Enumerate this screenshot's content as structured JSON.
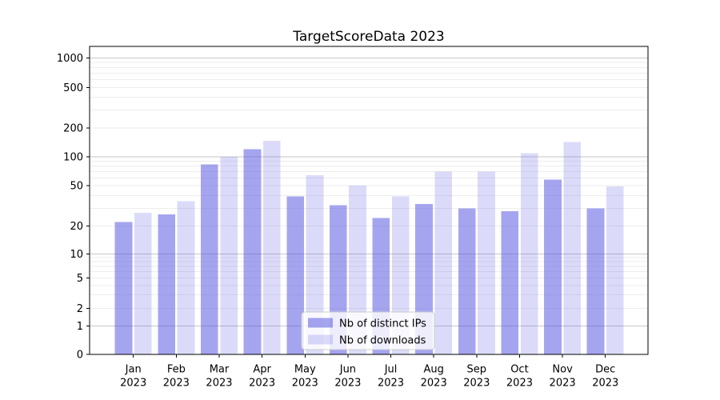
{
  "chart_data": {
    "type": "bar",
    "title": "TargetScoreData 2023",
    "categories": [
      "Jan",
      "Feb",
      "Mar",
      "Apr",
      "May",
      "Jun",
      "Jul",
      "Aug",
      "Sep",
      "Oct",
      "Nov",
      "Dec"
    ],
    "x_sublabel": "2023",
    "series": [
      {
        "name": "Nb of distinct IPs",
        "color": "#5a5ae2",
        "fill_opacity": 0.545,
        "apparent_color": "#a4a4f0",
        "values": [
          22,
          26,
          83,
          120,
          39,
          32,
          24,
          33,
          30,
          28,
          58,
          30
        ]
      },
      {
        "name": "Nb of downloads",
        "color": "#5a5ae2",
        "fill_opacity": 0.22,
        "apparent_color": "#d8d8f8",
        "values": [
          27,
          35,
          100,
          147,
          64,
          50,
          39,
          70,
          70,
          109,
          143,
          49
        ]
      }
    ],
    "yscale": "symlog-like",
    "ylim": [
      0,
      1284
    ],
    "yticks": [
      0,
      1,
      2,
      5,
      10,
      20,
      50,
      100,
      200,
      500,
      1000
    ],
    "grid": {
      "enabled": true,
      "major_color": "#c6c6c6",
      "minor_color": "#ededed",
      "major_values": [
        1,
        10,
        100,
        1000
      ]
    },
    "legend": {
      "position": "lower center",
      "background": "#ffffff",
      "border_color": "#cccccc"
    },
    "axis_color": "#000000",
    "background_color": "#ffffff"
  }
}
